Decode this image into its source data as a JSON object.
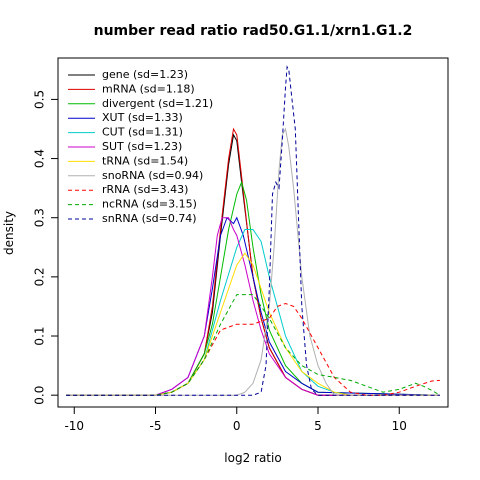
{
  "chart_data": {
    "type": "line",
    "title": "number read ratio rad50.G1.1/xrn1.G1.2",
    "xlabel": "log2 ratio",
    "ylabel": "density",
    "xlim": [
      -11,
      13
    ],
    "ylim": [
      -0.02,
      0.57
    ],
    "xticks": [
      -10,
      -5,
      0,
      5,
      10
    ],
    "yticks": [
      0.0,
      0.1,
      0.2,
      0.3,
      0.4,
      0.5
    ],
    "legend_position": "top-left",
    "grid": false,
    "series": [
      {
        "name": "gene (sd=1.23)",
        "color": "#000000",
        "dash": "solid",
        "x": [
          -10.5,
          -5,
          -4,
          -3,
          -2,
          -1.5,
          -1,
          -0.5,
          -0.2,
          0,
          0.3,
          0.7,
          1,
          1.5,
          2,
          3,
          4,
          5,
          12.5
        ],
        "y": [
          0,
          0,
          0.005,
          0.02,
          0.07,
          0.14,
          0.27,
          0.39,
          0.44,
          0.43,
          0.36,
          0.27,
          0.2,
          0.13,
          0.08,
          0.03,
          0.01,
          0,
          0
        ]
      },
      {
        "name": "mRNA (sd=1.18)",
        "color": "#dd0000",
        "dash": "solid",
        "x": [
          -10.5,
          -5,
          -4,
          -3,
          -2,
          -1.5,
          -1,
          -0.5,
          -0.2,
          0,
          0.3,
          0.7,
          1,
          1.5,
          2,
          3,
          4,
          5,
          12.5
        ],
        "y": [
          0,
          0,
          0.005,
          0.02,
          0.07,
          0.15,
          0.28,
          0.4,
          0.45,
          0.44,
          0.37,
          0.27,
          0.2,
          0.13,
          0.08,
          0.03,
          0.01,
          0,
          0
        ]
      },
      {
        "name": "divergent (sd=1.21)",
        "color": "#00bb00",
        "dash": "solid",
        "x": [
          -10.5,
          -5,
          -4,
          -3,
          -2,
          -1.5,
          -1,
          -0.5,
          0,
          0.3,
          0.6,
          1,
          1.5,
          2,
          3,
          4,
          5,
          12.5
        ],
        "y": [
          0,
          0,
          0.005,
          0.02,
          0.07,
          0.12,
          0.2,
          0.28,
          0.34,
          0.36,
          0.33,
          0.25,
          0.17,
          0.11,
          0.05,
          0.02,
          0.005,
          0
        ]
      },
      {
        "name": "XUT (sd=1.33)",
        "color": "#0000cc",
        "dash": "solid",
        "x": [
          -10.5,
          -5,
          -4,
          -3,
          -2,
          -1.5,
          -1,
          -0.6,
          -0.2,
          0,
          0.4,
          1,
          1.5,
          2,
          3,
          4,
          5,
          12.5
        ],
        "y": [
          0,
          0,
          0.01,
          0.03,
          0.1,
          0.18,
          0.27,
          0.3,
          0.29,
          0.3,
          0.27,
          0.2,
          0.14,
          0.09,
          0.04,
          0.02,
          0.005,
          0
        ]
      },
      {
        "name": "CUT (sd=1.31)",
        "color": "#00cccc",
        "dash": "solid",
        "x": [
          -10.5,
          -5,
          -4,
          -3,
          -2,
          -1,
          0,
          0.5,
          1,
          1.5,
          2,
          2.5,
          3,
          4,
          5,
          6,
          7,
          12.5
        ],
        "y": [
          0,
          0,
          0.005,
          0.02,
          0.06,
          0.16,
          0.25,
          0.28,
          0.28,
          0.26,
          0.2,
          0.15,
          0.1,
          0.04,
          0.015,
          0.005,
          0,
          0
        ]
      },
      {
        "name": "SUT (sd=1.23)",
        "color": "#cc00cc",
        "dash": "solid",
        "x": [
          -10.5,
          -5,
          -4,
          -3,
          -2,
          -1.5,
          -1.2,
          -0.9,
          -0.5,
          -0.2,
          0,
          0.5,
          1,
          1.5,
          2,
          3,
          4,
          5,
          12.5
        ],
        "y": [
          0,
          0,
          0.01,
          0.03,
          0.1,
          0.2,
          0.27,
          0.3,
          0.3,
          0.28,
          0.27,
          0.22,
          0.16,
          0.11,
          0.07,
          0.03,
          0.01,
          0,
          0
        ]
      },
      {
        "name": "tRNA (sd=1.54)",
        "color": "#ffdd00",
        "dash": "solid",
        "x": [
          -10.5,
          -5,
          -4,
          -3,
          -2,
          -1,
          0,
          0.5,
          1,
          1.5,
          2,
          3,
          4,
          5,
          6,
          7,
          12.5
        ],
        "y": [
          0,
          0,
          0.005,
          0.02,
          0.06,
          0.14,
          0.22,
          0.24,
          0.22,
          0.18,
          0.14,
          0.08,
          0.04,
          0.02,
          0.005,
          0,
          0
        ]
      },
      {
        "name": "snoRNA (sd=0.94)",
        "color": "#b0b0b0",
        "dash": "solid",
        "x": [
          -10.5,
          0,
          0.5,
          1,
          1.5,
          2,
          2.3,
          2.6,
          2.8,
          3,
          3.2,
          3.5,
          4,
          4.5,
          5,
          5.5,
          6,
          12.5
        ],
        "y": [
          0,
          0,
          0.005,
          0.02,
          0.06,
          0.15,
          0.25,
          0.38,
          0.44,
          0.45,
          0.42,
          0.35,
          0.2,
          0.1,
          0.05,
          0.02,
          0,
          0
        ]
      },
      {
        "name": "rRNA (sd=3.43)",
        "color": "#ff0000",
        "dash": "dashed",
        "x": [
          -10.5,
          -5,
          -4,
          -3,
          -2,
          -1,
          0,
          1,
          2,
          2.5,
          3,
          3.5,
          4,
          5,
          6,
          7,
          8,
          9,
          10,
          11,
          12,
          12.5
        ],
        "y": [
          0,
          0,
          0.005,
          0.02,
          0.06,
          0.11,
          0.12,
          0.12,
          0.13,
          0.15,
          0.155,
          0.15,
          0.13,
          0.08,
          0.03,
          0.005,
          0,
          0,
          0.005,
          0.015,
          0.024,
          0.025
        ]
      },
      {
        "name": "ncRNA (sd=3.15)",
        "color": "#00aa00",
        "dash": "dashed",
        "x": [
          -10.5,
          -5,
          -4,
          -3,
          -2,
          -1,
          0,
          1,
          2,
          3,
          4,
          5,
          6,
          7,
          8,
          9,
          10,
          11,
          11.5,
          12,
          12.5
        ],
        "y": [
          0,
          0,
          0.005,
          0.02,
          0.06,
          0.12,
          0.17,
          0.17,
          0.13,
          0.08,
          0.05,
          0.035,
          0.03,
          0.025,
          0.015,
          0.005,
          0.01,
          0.02,
          0.015,
          0.008,
          0
        ]
      },
      {
        "name": "snRNA (sd=0.74)",
        "color": "#000099",
        "dash": "dashed",
        "x": [
          -10.5,
          1,
          1.5,
          1.8,
          2,
          2.2,
          2.4,
          2.6,
          2.8,
          3,
          3.1,
          3.2,
          3.4,
          3.6,
          3.8,
          4,
          4.3,
          4.6,
          5,
          12.5
        ],
        "y": [
          0,
          0,
          0.005,
          0.05,
          0.18,
          0.34,
          0.36,
          0.35,
          0.43,
          0.52,
          0.555,
          0.55,
          0.5,
          0.45,
          0.3,
          0.15,
          0.05,
          0.01,
          0,
          0
        ]
      }
    ]
  }
}
